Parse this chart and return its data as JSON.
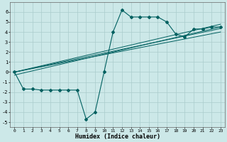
{
  "xlabel": "Humidex (Indice chaleur)",
  "bg_color": "#cce8e8",
  "grid_color": "#aacccc",
  "line_color": "#006060",
  "xlim": [
    -0.5,
    23.5
  ],
  "ylim": [
    -5.5,
    7
  ],
  "xticks": [
    0,
    1,
    2,
    3,
    4,
    5,
    6,
    7,
    8,
    9,
    10,
    11,
    12,
    13,
    14,
    15,
    16,
    17,
    18,
    19,
    20,
    21,
    22,
    23
  ],
  "yticks": [
    -5,
    -4,
    -3,
    -2,
    -1,
    0,
    1,
    2,
    3,
    4,
    5,
    6
  ],
  "main_x": [
    0,
    1,
    2,
    3,
    4,
    5,
    6,
    7,
    8,
    9,
    10,
    11,
    12,
    13,
    14,
    15,
    16,
    17,
    18,
    19,
    20,
    21,
    22,
    23
  ],
  "main_y": [
    0.0,
    -1.7,
    -1.7,
    -1.8,
    -1.8,
    -1.8,
    -1.8,
    -1.8,
    -4.7,
    -4.0,
    0.0,
    4.0,
    6.2,
    5.5,
    5.5,
    5.5,
    5.5,
    5.0,
    3.8,
    3.5,
    4.3,
    4.3,
    4.5,
    4.5
  ],
  "straight_lines": [
    {
      "x": [
        0,
        23
      ],
      "y": [
        0.0,
        4.78
      ]
    },
    {
      "x": [
        0,
        23
      ],
      "y": [
        0.0,
        4.35
      ]
    },
    {
      "x": [
        0,
        23
      ],
      "y": [
        0.0,
        4.0
      ]
    },
    {
      "x": [
        0,
        23
      ],
      "y": [
        -0.3,
        4.5
      ]
    }
  ]
}
